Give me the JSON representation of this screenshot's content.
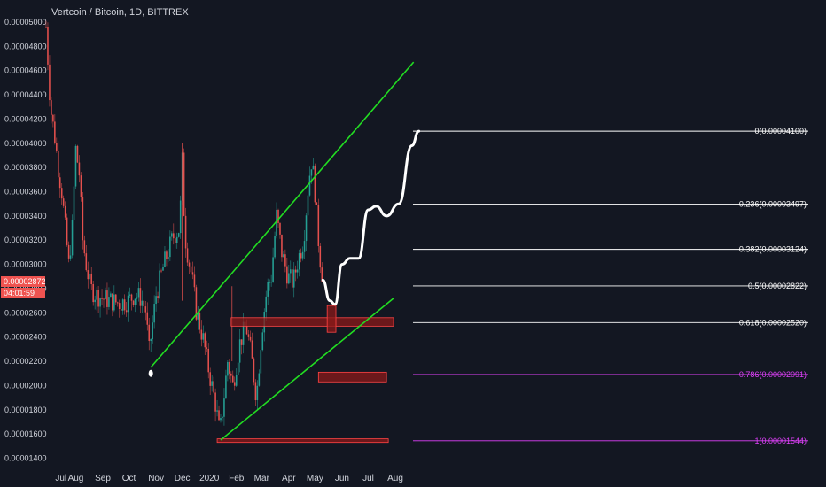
{
  "header": {
    "title": "Vertcoin / Bitcoin, 1D, BITTREX"
  },
  "price_tag": {
    "price": "0.00002872",
    "countdown": "04:01:59"
  },
  "colors": {
    "background": "#131722",
    "axis_text": "#d1d4dc",
    "up": "#26a69a",
    "down": "#ef5350",
    "channel": "#22dd22",
    "fib_line": "#ffffff",
    "fib_magenta": "#e040fb",
    "zone_fill": "#8b1a1a",
    "zone_border": "#ff4444",
    "projection": "#ffffff"
  },
  "chart_data": {
    "type": "candlestick",
    "title": "Vertcoin / Bitcoin, 1D, BITTREX",
    "ylim": [
      1.37e-05,
      5e-05
    ],
    "y_ticks": [
      "0.00005000",
      "0.00004800",
      "0.00004600",
      "0.00004400",
      "0.00004200",
      "0.00004000",
      "0.00003800",
      "0.00003600",
      "0.00003400",
      "0.00003200",
      "0.00003000",
      "0.00002800",
      "0.00002600",
      "0.00002400",
      "0.00002200",
      "0.00002000",
      "0.00001800",
      "0.00001600",
      "0.00001400"
    ],
    "x_ticks": [
      "Jul",
      "Aug",
      "Sep",
      "Oct",
      "Nov",
      "Dec",
      "2020",
      "Feb",
      "Mar",
      "Apr",
      "May",
      "Jun",
      "Jul",
      "Aug"
    ],
    "price_path": [
      [
        "2019-06-28",
        4.96e-05
      ],
      [
        "2019-07-03",
        4.3e-05
      ],
      [
        "2019-07-08",
        4.05e-05
      ],
      [
        "2019-07-12",
        3.8e-05
      ],
      [
        "2019-07-16",
        3.6e-05
      ],
      [
        "2019-07-20",
        3.3e-05
      ],
      [
        "2019-07-24",
        3e-05
      ],
      [
        "2019-07-28",
        3.3e-05
      ],
      [
        "2019-08-01",
        3.95e-05
      ],
      [
        "2019-08-05",
        3.75e-05
      ],
      [
        "2019-08-09",
        3.2e-05
      ],
      [
        "2019-08-13",
        3e-05
      ],
      [
        "2019-08-18",
        2.8e-05
      ],
      [
        "2019-08-24",
        2.75e-05
      ],
      [
        "2019-09-01",
        2.72e-05
      ],
      [
        "2019-09-10",
        2.7e-05
      ],
      [
        "2019-09-20",
        2.68e-05
      ],
      [
        "2019-09-30",
        2.7e-05
      ],
      [
        "2019-10-08",
        2.75e-05
      ],
      [
        "2019-10-15",
        2.72e-05
      ],
      [
        "2019-10-20",
        2.62e-05
      ],
      [
        "2019-10-24",
        2.28e-05
      ],
      [
        "2019-10-27",
        2.45e-05
      ],
      [
        "2019-11-01",
        2.75e-05
      ],
      [
        "2019-11-10",
        3e-05
      ],
      [
        "2019-11-20",
        3.22e-05
      ],
      [
        "2019-11-28",
        3.3e-05
      ],
      [
        "2019-12-01",
        3.85e-05
      ],
      [
        "2019-12-04",
        3.25e-05
      ],
      [
        "2019-12-08",
        3.05e-05
      ],
      [
        "2019-12-12",
        2.9e-05
      ],
      [
        "2019-12-17",
        2.62e-05
      ],
      [
        "2019-12-25",
        2.38e-05
      ],
      [
        "2020-01-01",
        2.1e-05
      ],
      [
        "2020-01-08",
        1.85e-05
      ],
      [
        "2020-01-13",
        1.6e-05
      ],
      [
        "2020-01-17",
        1.85e-05
      ],
      [
        "2020-01-22",
        2.2e-05
      ],
      [
        "2020-01-28",
        2e-05
      ],
      [
        "2020-02-05",
        2.35e-05
      ],
      [
        "2020-02-12",
        2.5e-05
      ],
      [
        "2020-02-18",
        2.25e-05
      ],
      [
        "2020-02-24",
        1.9e-05
      ],
      [
        "2020-03-01",
        2.45e-05
      ],
      [
        "2020-03-07",
        2.8e-05
      ],
      [
        "2020-03-12",
        2.9e-05
      ],
      [
        "2020-03-18",
        3.4e-05
      ],
      [
        "2020-03-24",
        3.1e-05
      ],
      [
        "2020-03-31",
        2.9e-05
      ],
      [
        "2020-04-06",
        2.85e-05
      ],
      [
        "2020-04-12",
        3.05e-05
      ],
      [
        "2020-04-18",
        3.2e-05
      ],
      [
        "2020-04-24",
        3.7e-05
      ],
      [
        "2020-04-27",
        3.85e-05
      ],
      [
        "2020-04-30",
        3.7e-05
      ],
      [
        "2020-05-03",
        3.4e-05
      ],
      [
        "2020-05-06",
        3.1e-05
      ],
      [
        "2020-05-10",
        2.87e-05
      ]
    ],
    "fib_levels": [
      {
        "label": "0(0.00004100)",
        "value": 4.1e-05,
        "color": "#ffffff"
      },
      {
        "label": "0.236(0.00003497)",
        "value": 3.497e-05,
        "color": "#ffffff"
      },
      {
        "label": "0.382(0.00003124)",
        "value": 3.124e-05,
        "color": "#ffffff"
      },
      {
        "label": "0.5(0.00002822)",
        "value": 2.822e-05,
        "color": "#ffffff"
      },
      {
        "label": "0.618(0.00002520)",
        "value": 2.52e-05,
        "color": "#ffffff"
      },
      {
        "label": "0.786(0.00002091)",
        "value": 2.091e-05,
        "color": "#e040fb"
      },
      {
        "label": "1(0.00001544)",
        "value": 1.544e-05,
        "color": "#e040fb"
      }
    ],
    "channel": {
      "upper": [
        [
          "2019-10-26",
          2.15e-05
        ],
        [
          "2020-08-22",
          4.67e-05
        ]
      ],
      "lower": [
        [
          "2020-01-14",
          1.55e-05
        ],
        [
          "2020-07-30",
          2.72e-05
        ]
      ]
    },
    "zones": [
      {
        "from": "2020-01-26",
        "to": "2020-07-30",
        "low": 2.49e-05,
        "high": 2.56e-05
      },
      {
        "from": "2020-05-15",
        "to": "2020-05-25",
        "low": 2.44e-05,
        "high": 2.66e-05
      },
      {
        "from": "2020-05-05",
        "to": "2020-07-22",
        "low": 2.03e-05,
        "high": 2.11e-05
      },
      {
        "from": "2020-01-10",
        "to": "2020-07-24",
        "low": 1.53e-05,
        "high": 1.56e-05
      }
    ],
    "projection": [
      [
        "2020-05-10",
        2.87e-05
      ],
      [
        "2020-05-18",
        2.7e-05
      ],
      [
        "2020-05-24",
        2.67e-05
      ],
      [
        "2020-06-01",
        3e-05
      ],
      [
        "2020-06-10",
        3.05e-05
      ],
      [
        "2020-06-20",
        3.05e-05
      ],
      [
        "2020-07-01",
        3.45e-05
      ],
      [
        "2020-07-10",
        3.48e-05
      ],
      [
        "2020-07-22",
        3.4e-05
      ],
      [
        "2020-08-05",
        3.5e-05
      ],
      [
        "2020-08-20",
        3.98e-05
      ],
      [
        "2020-08-28",
        4.1e-05
      ]
    ],
    "marker_point": [
      "2019-10-26",
      2.1e-05
    ],
    "grid": false
  }
}
